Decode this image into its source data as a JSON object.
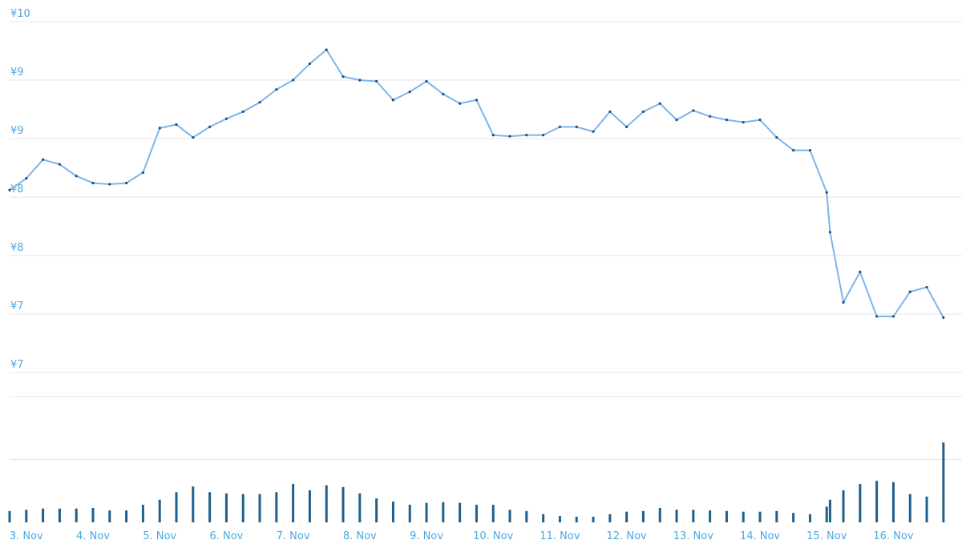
{
  "chart_data": [
    {
      "type": "line",
      "x": [
        2.75,
        3,
        3.25,
        3.5,
        3.75,
        4,
        4.25,
        4.5,
        4.75,
        5,
        5.25,
        5.5,
        5.75,
        6,
        6.25,
        6.5,
        6.75,
        7,
        7.25,
        7.5,
        7.75,
        8,
        8.25,
        8.5,
        8.75,
        9,
        9.25,
        9.5,
        9.75,
        10,
        10.25,
        10.5,
        10.75,
        11,
        11.25,
        11.5,
        11.75,
        12,
        12.25,
        12.5,
        12.75,
        13,
        13.25,
        13.5,
        13.75,
        14,
        14.25,
        14.5,
        14.75,
        15,
        15.05,
        15.25,
        15.5,
        15.75,
        16,
        16.25,
        16.5,
        16.75
      ],
      "series": [
        {
          "color": "#7cb5ec",
          "values": [
            8.56,
            8.66,
            8.82,
            8.78,
            8.68,
            8.62,
            8.61,
            8.62,
            8.71,
            9.09,
            9.12,
            9.01,
            9.1,
            9.17,
            9.23,
            9.31,
            9.42,
            9.5,
            9.64,
            9.76,
            9.53,
            9.5,
            9.49,
            9.33,
            9.4,
            9.49,
            9.38,
            9.3,
            9.33,
            9.03,
            9.02,
            9.03,
            9.03,
            9.1,
            9.1,
            9.06,
            9.23,
            9.1,
            9.23,
            9.3,
            9.16,
            9.24,
            9.19,
            9.16,
            9.14,
            9.16,
            9.01,
            8.9,
            8.9,
            8.54,
            8.2,
            7.6,
            7.86,
            7.48,
            7.48,
            7.69,
            7.73,
            7.47
          ]
        }
      ],
      "xlim": [
        2.75,
        16.8
      ],
      "ylim": [
        7,
        10
      ],
      "yticks": [
        {
          "value": 10,
          "label": "¥10"
        },
        {
          "value": 9.5,
          "label": "¥9"
        },
        {
          "value": 9,
          "label": "¥9"
        },
        {
          "value": 8.5,
          "label": "¥8"
        },
        {
          "value": 8,
          "label": "¥8"
        },
        {
          "value": 7.5,
          "label": "¥7"
        },
        {
          "value": 7,
          "label": "¥7"
        }
      ],
      "grid": true
    },
    {
      "type": "bar",
      "x": [
        2.75,
        3,
        3.25,
        3.5,
        3.75,
        4,
        4.25,
        4.5,
        4.75,
        5,
        5.25,
        5.5,
        5.75,
        6,
        6.25,
        6.5,
        6.75,
        7,
        7.25,
        7.5,
        7.75,
        8,
        8.25,
        8.5,
        8.75,
        9,
        9.25,
        9.5,
        9.75,
        10,
        10.25,
        10.5,
        10.75,
        11,
        11.25,
        11.5,
        11.75,
        12,
        12.25,
        12.5,
        12.75,
        13,
        13.25,
        13.5,
        13.75,
        14,
        14.25,
        14.5,
        14.75,
        15,
        15.05,
        15.25,
        15.5,
        15.75,
        16,
        16.25,
        16.5,
        16.75
      ],
      "values": [
        0.18,
        0.2,
        0.22,
        0.22,
        0.22,
        0.23,
        0.19,
        0.19,
        0.28,
        0.36,
        0.48,
        0.57,
        0.48,
        0.46,
        0.45,
        0.45,
        0.48,
        0.61,
        0.51,
        0.59,
        0.56,
        0.46,
        0.38,
        0.33,
        0.28,
        0.31,
        0.32,
        0.31,
        0.28,
        0.28,
        0.2,
        0.18,
        0.13,
        0.1,
        0.09,
        0.09,
        0.13,
        0.17,
        0.18,
        0.23,
        0.2,
        0.2,
        0.19,
        0.18,
        0.17,
        0.17,
        0.18,
        0.15,
        0.13,
        0.25,
        0.36,
        0.51,
        0.61,
        0.66,
        0.64,
        0.45,
        0.41,
        1.27
      ],
      "color": "#1f5f8b",
      "xlim": [
        2.75,
        16.8
      ],
      "ylim": [
        0,
        2
      ],
      "yticks": [
        1,
        2
      ],
      "xticks": [
        {
          "value": 3,
          "label": "3. Nov"
        },
        {
          "value": 4,
          "label": "4. Nov"
        },
        {
          "value": 5,
          "label": "5. Nov"
        },
        {
          "value": 6,
          "label": "6. Nov"
        },
        {
          "value": 7,
          "label": "7. Nov"
        },
        {
          "value": 8,
          "label": "8. Nov"
        },
        {
          "value": 9,
          "label": "9. Nov"
        },
        {
          "value": 10,
          "label": "10. Nov"
        },
        {
          "value": 11,
          "label": "11. Nov"
        },
        {
          "value": 12,
          "label": "12. Nov"
        },
        {
          "value": 13,
          "label": "13. Nov"
        },
        {
          "value": 14,
          "label": "14. Nov"
        },
        {
          "value": 15,
          "label": "15. Nov"
        },
        {
          "value": 16,
          "label": "16. Nov"
        }
      ],
      "grid": true
    }
  ]
}
